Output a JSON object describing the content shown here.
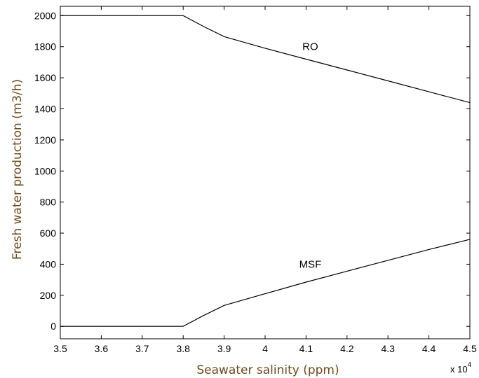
{
  "chart_data": {
    "type": "line",
    "xlabel": "Seawater salinity (ppm)",
    "ylabel": "Fresh water production (m3/h)",
    "x_multiplier_label": "x 10",
    "x_multiplier_exponent": "4",
    "xlim": [
      3.5,
      4.5
    ],
    "ylim": [
      -80,
      2060
    ],
    "x_ticks": [
      3.5,
      3.6,
      3.7,
      3.8,
      3.9,
      4.0,
      4.1,
      4.2,
      4.3,
      4.4,
      4.5
    ],
    "x_tick_labels": [
      "3.5",
      "3.6",
      "3.7",
      "3.8",
      "3.9",
      "4",
      "4.1",
      "4.2",
      "4.3",
      "4.4",
      "4.5"
    ],
    "y_ticks": [
      0,
      200,
      400,
      600,
      800,
      1000,
      1200,
      1400,
      1600,
      1800,
      2000
    ],
    "y_tick_labels": [
      "0",
      "200",
      "400",
      "600",
      "800",
      "1000",
      "1200",
      "1400",
      "1600",
      "1800",
      "2000"
    ],
    "grid": false,
    "series": [
      {
        "name": "RO",
        "x": [
          3.5,
          3.8,
          3.85,
          3.9,
          4.0,
          4.1,
          4.2,
          4.3,
          4.4,
          4.5
        ],
        "y": [
          2000,
          2000,
          1930,
          1865,
          1790,
          1720,
          1650,
          1580,
          1510,
          1440
        ]
      },
      {
        "name": "MSF",
        "x": [
          3.5,
          3.8,
          3.85,
          3.9,
          4.0,
          4.1,
          4.2,
          4.3,
          4.4,
          4.5
        ],
        "y": [
          0,
          0,
          70,
          135,
          210,
          285,
          355,
          425,
          495,
          560
        ]
      }
    ],
    "annotations": [
      {
        "text": "RO",
        "x": 4.1,
        "y": 1800
      },
      {
        "text": "MSF",
        "x": 4.1,
        "y": 400
      }
    ]
  }
}
